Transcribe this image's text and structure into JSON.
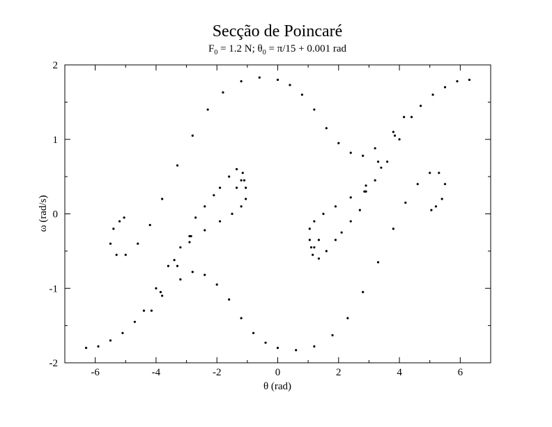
{
  "chart_data": {
    "type": "scatter",
    "title": "Secção de Poincaré",
    "subtitle": {
      "parts": [
        "F",
        "0",
        " = 1.2 N; θ",
        "0",
        " = π/15 + 0.001 rad"
      ]
    },
    "xlabel": "θ (rad)",
    "ylabel": "ω (rad/s)",
    "xlim": [
      -7,
      7
    ],
    "ylim": [
      -2,
      2
    ],
    "xticks": [
      -6,
      -4,
      -2,
      0,
      2,
      4,
      6
    ],
    "yticks": [
      -2,
      -1,
      0,
      1,
      2
    ],
    "grid": false,
    "marker_color": "#000000",
    "series": [
      {
        "points": [
          [
            -5.05,
            -0.05
          ],
          [
            -5.2,
            -0.1
          ],
          [
            -5.4,
            -0.2
          ],
          [
            -5.5,
            -0.4
          ],
          [
            -5.3,
            -0.55
          ],
          [
            -5.0,
            -0.55
          ],
          [
            -4.6,
            -0.4
          ],
          [
            -4.2,
            -0.15
          ],
          [
            -3.8,
            0.2
          ],
          [
            -3.3,
            0.65
          ],
          [
            -2.8,
            1.05
          ],
          [
            -2.3,
            1.4
          ],
          [
            -1.8,
            1.63
          ],
          [
            -1.2,
            1.78
          ],
          [
            -0.6,
            1.83
          ],
          [
            0.0,
            1.8
          ],
          [
            0.4,
            1.73
          ],
          [
            0.8,
            1.6
          ],
          [
            1.2,
            1.4
          ],
          [
            1.6,
            1.15
          ],
          [
            2.0,
            0.95
          ],
          [
            2.4,
            0.82
          ],
          [
            2.8,
            0.78
          ],
          [
            3.2,
            0.88
          ],
          [
            2.85,
            0.3
          ],
          [
            3.3,
            0.7
          ],
          [
            3.8,
            1.1
          ],
          [
            4.15,
            1.3
          ],
          [
            3.85,
            1.05
          ],
          [
            3.4,
            0.62
          ],
          [
            2.9,
            0.38
          ],
          [
            2.4,
            0.22
          ],
          [
            1.9,
            0.1
          ],
          [
            1.5,
            0.0
          ],
          [
            1.2,
            -0.1
          ],
          [
            1.05,
            -0.2
          ],
          [
            1.05,
            -0.35
          ],
          [
            1.1,
            -0.45
          ]
        ]
      },
      {
        "points": [
          [
            5.05,
            0.05
          ],
          [
            5.2,
            0.1
          ],
          [
            5.4,
            0.2
          ],
          [
            5.5,
            0.4
          ],
          [
            5.3,
            0.55
          ],
          [
            5.0,
            0.55
          ],
          [
            4.6,
            0.4
          ],
          [
            4.2,
            0.15
          ],
          [
            3.8,
            -0.2
          ],
          [
            3.3,
            -0.65
          ],
          [
            2.8,
            -1.05
          ],
          [
            2.3,
            -1.4
          ],
          [
            1.8,
            -1.63
          ],
          [
            1.2,
            -1.78
          ],
          [
            0.6,
            -1.83
          ],
          [
            0.0,
            -1.8
          ],
          [
            -0.4,
            -1.73
          ],
          [
            -0.8,
            -1.6
          ],
          [
            -1.2,
            -1.4
          ],
          [
            -1.6,
            -1.15
          ],
          [
            -2.0,
            -0.95
          ],
          [
            -2.4,
            -0.82
          ],
          [
            -2.8,
            -0.78
          ],
          [
            -3.2,
            -0.88
          ],
          [
            -2.85,
            -0.3
          ],
          [
            -3.3,
            -0.7
          ],
          [
            -3.8,
            -1.1
          ],
          [
            -4.15,
            -1.3
          ],
          [
            -3.85,
            -1.05
          ],
          [
            -3.4,
            -0.62
          ],
          [
            -2.9,
            -0.38
          ],
          [
            -2.4,
            -0.22
          ],
          [
            -1.9,
            -0.1
          ],
          [
            -1.5,
            0.0
          ],
          [
            -1.2,
            0.1
          ],
          [
            -1.05,
            0.2
          ],
          [
            -1.05,
            0.35
          ],
          [
            -1.1,
            0.45
          ]
        ]
      },
      {
        "points": [
          [
            -6.3,
            -1.8
          ],
          [
            -5.9,
            -1.78
          ],
          [
            -5.5,
            -1.7
          ],
          [
            -5.1,
            -1.6
          ],
          [
            -4.7,
            -1.45
          ],
          [
            -4.4,
            -1.3
          ],
          [
            -4.0,
            -1.0
          ],
          [
            -3.6,
            -0.7
          ],
          [
            -3.2,
            -0.45
          ],
          [
            -2.9,
            -0.3
          ],
          [
            -2.7,
            -0.05
          ],
          [
            -2.4,
            0.1
          ],
          [
            -2.1,
            0.25
          ],
          [
            -1.9,
            0.35
          ],
          [
            -1.6,
            0.5
          ],
          [
            -1.35,
            0.6
          ],
          [
            -1.15,
            0.55
          ],
          [
            -1.2,
            0.45
          ],
          [
            -1.35,
            0.35
          ]
        ]
      },
      {
        "points": [
          [
            6.3,
            1.8
          ],
          [
            5.9,
            1.78
          ],
          [
            5.5,
            1.7
          ],
          [
            5.1,
            1.6
          ],
          [
            4.7,
            1.45
          ],
          [
            4.4,
            1.3
          ],
          [
            4.0,
            1.0
          ],
          [
            3.6,
            0.7
          ],
          [
            3.2,
            0.45
          ],
          [
            2.9,
            0.3
          ],
          [
            2.7,
            0.05
          ],
          [
            2.4,
            -0.1
          ],
          [
            2.1,
            -0.25
          ],
          [
            1.9,
            -0.35
          ],
          [
            1.6,
            -0.5
          ],
          [
            1.35,
            -0.6
          ],
          [
            1.15,
            -0.55
          ],
          [
            1.2,
            -0.45
          ],
          [
            1.35,
            -0.35
          ]
        ]
      }
    ]
  }
}
